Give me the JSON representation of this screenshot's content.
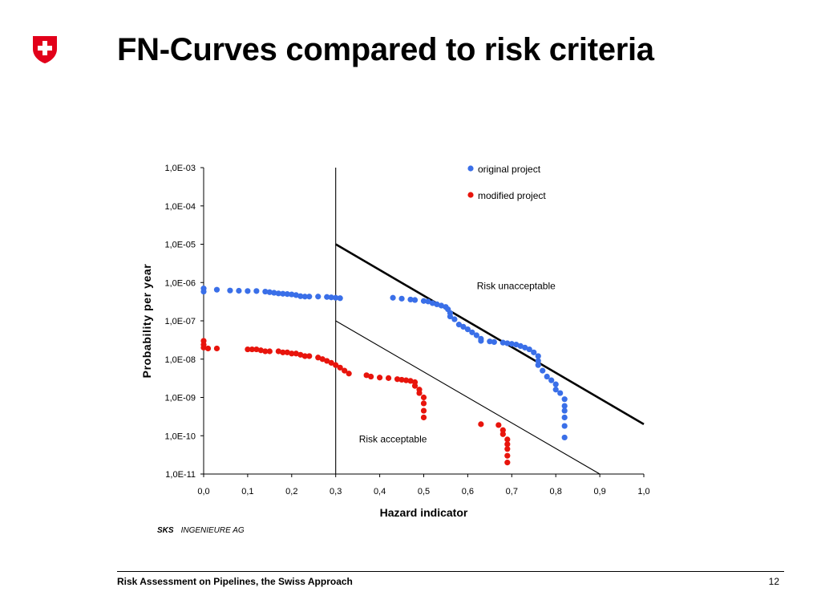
{
  "slide": {
    "title": "FN-Curves compared to risk criteria",
    "credit_company": "SKS",
    "credit_suffix": "INGENIEURE AG",
    "footer_text": "Risk Assessment on Pipelines, the Swiss Approach",
    "page_number": "12",
    "logo_icon": "swiss-cross-shield-icon",
    "logo_color": "#e2001a"
  },
  "chart_data": {
    "type": "scatter",
    "title": "",
    "xlabel": "Hazard indicator",
    "ylabel": "Probability per year",
    "xlim": [
      0.0,
      1.0
    ],
    "ylim": [
      1e-11,
      0.001
    ],
    "yscale": "log",
    "x_ticks": [
      "0,0",
      "0,1",
      "0,2",
      "0,3",
      "0,4",
      "0,5",
      "0,6",
      "0,7",
      "0,8",
      "0,9",
      "1,0"
    ],
    "y_ticks": [
      "1,0E-03",
      "1,0E-04",
      "1,0E-05",
      "1,0E-06",
      "1,0E-07",
      "1,0E-08",
      "1,0E-09",
      "1,0E-10",
      "1,0E-11"
    ],
    "grid": false,
    "legend_position": "top-right",
    "series": [
      {
        "name": "original project",
        "color": "#3a6fe8",
        "points": [
          [
            0.0,
            7e-07
          ],
          [
            0.0,
            5.8e-07
          ],
          [
            0.03,
            6.5e-07
          ],
          [
            0.06,
            6.2e-07
          ],
          [
            0.08,
            6.1e-07
          ],
          [
            0.1,
            6e-07
          ],
          [
            0.12,
            6e-07
          ],
          [
            0.14,
            5.8e-07
          ],
          [
            0.15,
            5.6e-07
          ],
          [
            0.16,
            5.4e-07
          ],
          [
            0.17,
            5.2e-07
          ],
          [
            0.18,
            5.1e-07
          ],
          [
            0.19,
            5e-07
          ],
          [
            0.2,
            4.9e-07
          ],
          [
            0.21,
            4.7e-07
          ],
          [
            0.22,
            4.4e-07
          ],
          [
            0.23,
            4.3e-07
          ],
          [
            0.24,
            4.3e-07
          ],
          [
            0.26,
            4.3e-07
          ],
          [
            0.28,
            4.2e-07
          ],
          [
            0.29,
            4.1e-07
          ],
          [
            0.3,
            4e-07
          ],
          [
            0.31,
            3.9e-07
          ],
          [
            0.43,
            4e-07
          ],
          [
            0.45,
            3.8e-07
          ],
          [
            0.47,
            3.6e-07
          ],
          [
            0.48,
            3.5e-07
          ],
          [
            0.5,
            3.3e-07
          ],
          [
            0.51,
            3.2e-07
          ],
          [
            0.52,
            2.9e-07
          ],
          [
            0.53,
            2.7e-07
          ],
          [
            0.54,
            2.5e-07
          ],
          [
            0.55,
            2.3e-07
          ],
          [
            0.555,
            2e-07
          ],
          [
            0.56,
            1.6e-07
          ],
          [
            0.56,
            1.3e-07
          ],
          [
            0.57,
            1.1e-07
          ],
          [
            0.58,
            8e-08
          ],
          [
            0.59,
            7e-08
          ],
          [
            0.6,
            6e-08
          ],
          [
            0.61,
            5e-08
          ],
          [
            0.62,
            4.2e-08
          ],
          [
            0.63,
            3.4e-08
          ],
          [
            0.63,
            3e-08
          ],
          [
            0.65,
            2.9e-08
          ],
          [
            0.66,
            2.8e-08
          ],
          [
            0.68,
            2.7e-08
          ],
          [
            0.69,
            2.6e-08
          ],
          [
            0.7,
            2.5e-08
          ],
          [
            0.71,
            2.4e-08
          ],
          [
            0.72,
            2.2e-08
          ],
          [
            0.73,
            2e-08
          ],
          [
            0.74,
            1.8e-08
          ],
          [
            0.75,
            1.5e-08
          ],
          [
            0.76,
            1.2e-08
          ],
          [
            0.76,
            9e-09
          ],
          [
            0.76,
            7e-09
          ],
          [
            0.77,
            5e-09
          ],
          [
            0.78,
            3.5e-09
          ],
          [
            0.79,
            2.8e-09
          ],
          [
            0.8,
            2.2e-09
          ],
          [
            0.8,
            1.6e-09
          ],
          [
            0.81,
            1.3e-09
          ],
          [
            0.82,
            9e-10
          ],
          [
            0.82,
            6e-10
          ],
          [
            0.82,
            4.5e-10
          ],
          [
            0.82,
            3e-10
          ],
          [
            0.82,
            1.8e-10
          ],
          [
            0.82,
            9e-11
          ]
        ]
      },
      {
        "name": "modified project",
        "color": "#e8140c",
        "points": [
          [
            0.0,
            3e-08
          ],
          [
            0.0,
            2.4e-08
          ],
          [
            0.0,
            2e-08
          ],
          [
            0.01,
            1.9e-08
          ],
          [
            0.03,
            1.9e-08
          ],
          [
            0.1,
            1.8e-08
          ],
          [
            0.11,
            1.8e-08
          ],
          [
            0.12,
            1.8e-08
          ],
          [
            0.13,
            1.7e-08
          ],
          [
            0.14,
            1.6e-08
          ],
          [
            0.15,
            1.6e-08
          ],
          [
            0.17,
            1.6e-08
          ],
          [
            0.18,
            1.5e-08
          ],
          [
            0.19,
            1.5e-08
          ],
          [
            0.2,
            1.4e-08
          ],
          [
            0.21,
            1.4e-08
          ],
          [
            0.22,
            1.3e-08
          ],
          [
            0.23,
            1.2e-08
          ],
          [
            0.24,
            1.2e-08
          ],
          [
            0.26,
            1.1e-08
          ],
          [
            0.27,
            1e-08
          ],
          [
            0.28,
            9e-09
          ],
          [
            0.29,
            8e-09
          ],
          [
            0.3,
            7e-09
          ],
          [
            0.31,
            6e-09
          ],
          [
            0.32,
            5e-09
          ],
          [
            0.33,
            4.2e-09
          ],
          [
            0.37,
            3.8e-09
          ],
          [
            0.38,
            3.5e-09
          ],
          [
            0.4,
            3.3e-09
          ],
          [
            0.42,
            3.2e-09
          ],
          [
            0.44,
            3e-09
          ],
          [
            0.45,
            2.9e-09
          ],
          [
            0.46,
            2.8e-09
          ],
          [
            0.47,
            2.7e-09
          ],
          [
            0.48,
            2.5e-09
          ],
          [
            0.48,
            2e-09
          ],
          [
            0.49,
            1.6e-09
          ],
          [
            0.49,
            1.3e-09
          ],
          [
            0.5,
            1e-09
          ],
          [
            0.5,
            7e-10
          ],
          [
            0.5,
            4.5e-10
          ],
          [
            0.5,
            3e-10
          ],
          [
            0.63,
            2e-10
          ],
          [
            0.67,
            1.9e-10
          ],
          [
            0.68,
            1.4e-10
          ],
          [
            0.68,
            1.1e-10
          ],
          [
            0.69,
            8e-11
          ],
          [
            0.69,
            6e-11
          ],
          [
            0.69,
            4.5e-11
          ],
          [
            0.69,
            3e-11
          ],
          [
            0.69,
            2e-11
          ]
        ]
      }
    ],
    "criteria_lines": [
      {
        "name": "Limit of unacceptable risk",
        "from": [
          0.3,
          1e-05
        ],
        "to": [
          1.0,
          2e-10
        ],
        "width": "thick"
      },
      {
        "name": "Limit of acceptable risk",
        "from": [
          0.3,
          1e-07
        ],
        "to": [
          0.9,
          1e-11
        ],
        "width": "thin"
      },
      {
        "name": "Hazard indicator threshold",
        "from": [
          0.3,
          0.001
        ],
        "to": [
          0.3,
          1e-11
        ],
        "width": "thin"
      }
    ],
    "annotations": [
      {
        "text": "Risk unacceptable",
        "at": [
          0.71,
          1e-06
        ]
      },
      {
        "text": "Risk acceptable",
        "at": [
          0.43,
          1e-10
        ]
      }
    ]
  }
}
